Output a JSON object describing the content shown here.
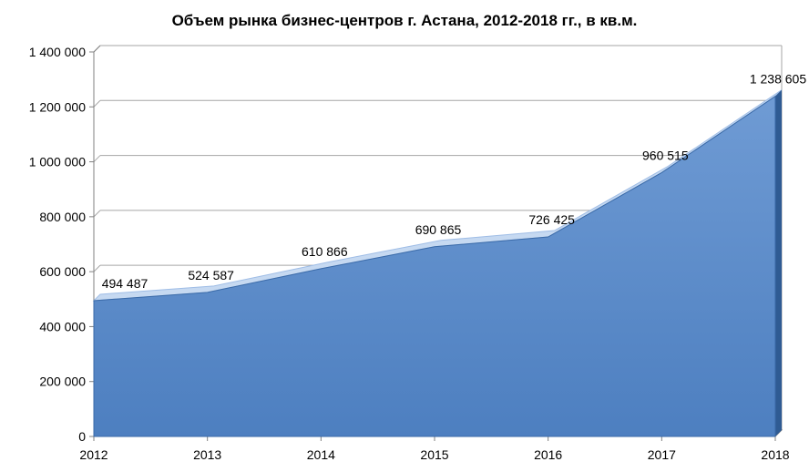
{
  "chart_data": {
    "type": "area",
    "title": "Объем рынка бизнес-центров г. Астана, 2012-2018 гг., в кв.м.",
    "categories": [
      "2012",
      "2013",
      "2014",
      "2015",
      "2016",
      "2017",
      "2018"
    ],
    "series": [
      {
        "values": [
          494487,
          524587,
          610866,
          690865,
          726425,
          960515,
          1238605
        ],
        "labels": [
          "494 487",
          "524 587",
          "610 866",
          "690 865",
          "726 425",
          "960 515",
          "1 238 605"
        ]
      }
    ],
    "ylim": [
      0,
      1400000
    ],
    "yticks": [
      0,
      200000,
      400000,
      600000,
      800000,
      1000000,
      1200000,
      1400000
    ],
    "ytick_labels": [
      "0",
      "200 000",
      "400 000",
      "600 000",
      "800 000",
      "1 000 000",
      "1 200 000",
      "1 400 000"
    ],
    "grid": true,
    "legend": "none",
    "colors": {
      "fill": "#4f81bd",
      "fill_light": "#6a96d0",
      "edge": "#c6d9f1",
      "grid": "#a6a6a6"
    }
  }
}
